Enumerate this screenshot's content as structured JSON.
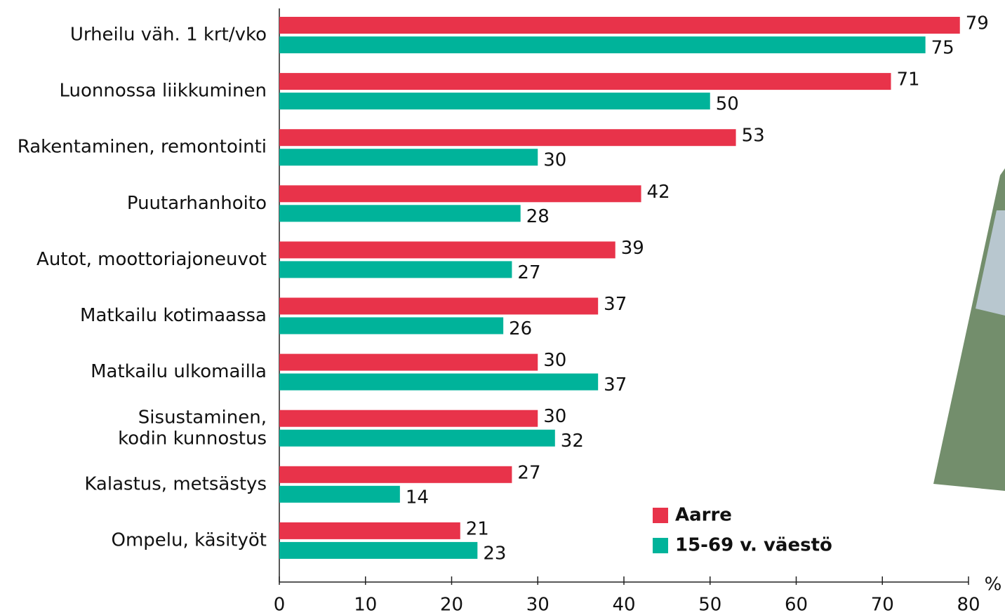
{
  "chart_data": {
    "type": "bar",
    "orientation": "horizontal",
    "categories": [
      "Urheilu väh. 1 krt/vko",
      "Luonnossa liikkuminen",
      "Rakentaminen, remontointi",
      "Puutarhanhoito",
      "Autot, moottoriajoneuvot",
      "Matkailu kotimaassa",
      "Matkailu ulkomailla",
      "Sisustaminen, kodin kunnostus",
      "Kalastus, metsästys",
      "Ompelu, käsityöt"
    ],
    "series": [
      {
        "name": "Aarre",
        "color": "#e8334a",
        "values": [
          79,
          71,
          53,
          42,
          39,
          37,
          30,
          30,
          27,
          21
        ]
      },
      {
        "name": "15-69 v. väestö",
        "color": "#00b39a",
        "values": [
          75,
          50,
          30,
          28,
          27,
          26,
          37,
          32,
          14,
          23
        ]
      }
    ],
    "xlim": [
      0,
      80
    ],
    "xticks": [
      0,
      10,
      20,
      30,
      40,
      50,
      60,
      70,
      80
    ],
    "x_axis_unit": "%",
    "legend": "lower right",
    "grid": false
  }
}
